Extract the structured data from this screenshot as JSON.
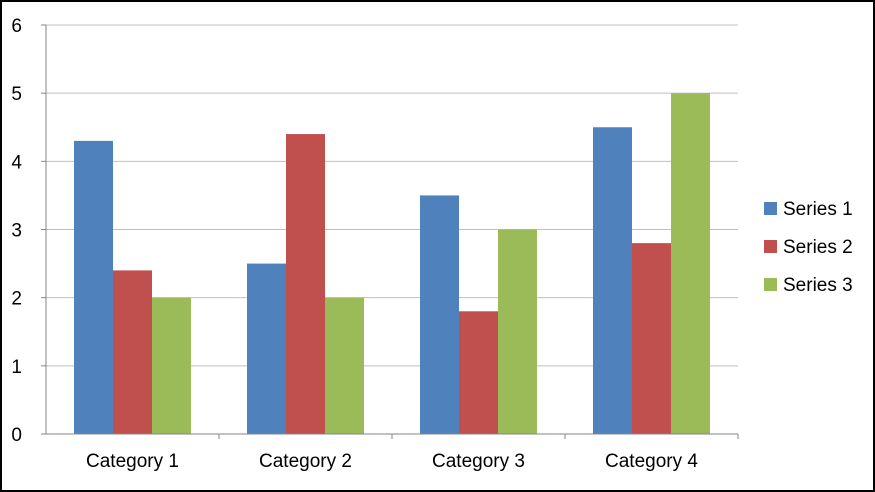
{
  "chart_data": {
    "type": "bar",
    "title": "",
    "xlabel": "",
    "ylabel": "",
    "categories": [
      "Category 1",
      "Category 2",
      "Category 3",
      "Category 4"
    ],
    "series": [
      {
        "name": "Series 1",
        "color": "#4F81BD",
        "values": [
          4.3,
          2.5,
          3.5,
          4.5
        ]
      },
      {
        "name": "Series 2",
        "color": "#C0504D",
        "values": [
          2.4,
          4.4,
          1.8,
          2.8
        ]
      },
      {
        "name": "Series 3",
        "color": "#9BBB59",
        "values": [
          2.0,
          2.0,
          3.0,
          5.0
        ]
      }
    ],
    "ylim": [
      0,
      6
    ],
    "yticks": [
      0,
      1,
      2,
      3,
      4,
      5,
      6
    ],
    "grid": true,
    "legend_position": "right"
  }
}
